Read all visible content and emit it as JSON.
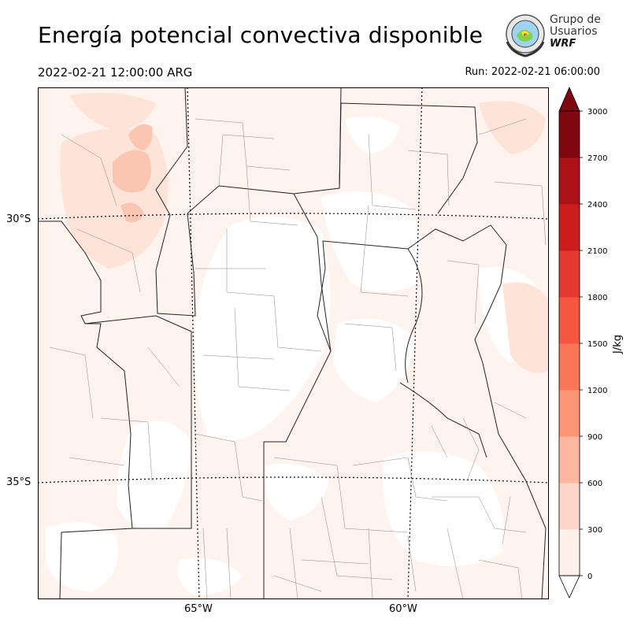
{
  "title": "Energía potencial convectiva disponible",
  "valid_time": "2022-02-21 12:00:00 ARG",
  "run_time": "Run: 2022-02-21 06:00:00",
  "logo": {
    "line1": "Grupo de",
    "line2": "Usuarios",
    "line3": "WRF"
  },
  "axes": {
    "lat_labels": [
      "30°S",
      "35°S"
    ],
    "lon_labels": [
      "65°W",
      "60°W"
    ]
  },
  "colorbar": {
    "label": "J/kg",
    "ticks": [
      "0",
      "300",
      "600",
      "900",
      "1200",
      "1500",
      "1800",
      "2100",
      "2400",
      "2700",
      "3000"
    ],
    "colors": [
      "#fff0e9",
      "#fdd6c7",
      "#fcb79e",
      "#fc9476",
      "#fa7659",
      "#f45640",
      "#e33a2f",
      "#cb1d1e",
      "#ab1217",
      "#7e0811"
    ],
    "extend": "both"
  },
  "colors": {
    "cape_low": "#fde6dc",
    "cape_mid": "#f8c3ae",
    "cape_high": "#f3a585"
  }
}
